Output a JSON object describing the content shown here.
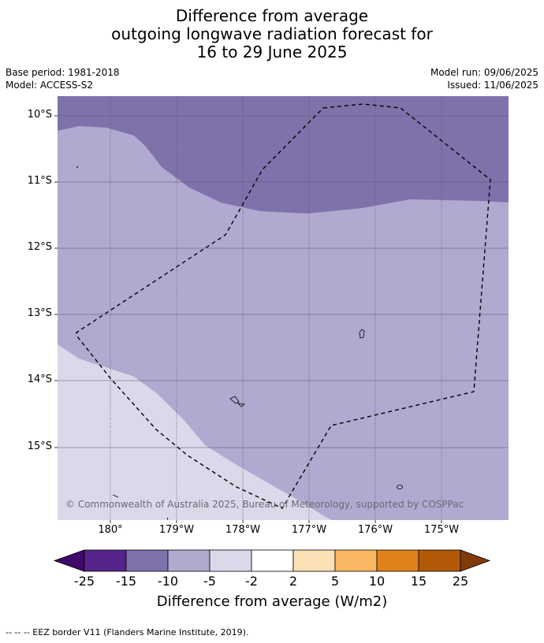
{
  "title": {
    "line1": "Difference from average",
    "line2": "outgoing longwave radiation forecast for",
    "line3": "16 to 29 June 2025"
  },
  "meta": {
    "base_period": "Base period: 1981-2018",
    "model": "Model: ACCESS-S2",
    "model_run": "Model run: 09/06/2025",
    "issued": "Issued: 11/06/2025"
  },
  "map": {
    "lat_labels": [
      "10°S",
      "11°S",
      "12°S",
      "13°S",
      "14°S",
      "15°S"
    ],
    "lon_labels": [
      "180°",
      "179°W",
      "178°W",
      "177°W",
      "176°W",
      "175°W"
    ],
    "copyright": "© Commonwealth of Australia 2025, Bureau of Meteorology, supported by COSPPac",
    "legend_colors": {
      "band_lt_minus15": "#7f72ab",
      "band_minus10_to_minus5": "#b0aad0",
      "band_minus5_to_minus2": "#d9d9ea"
    }
  },
  "colorbar": {
    "ticks": [
      "-25",
      "-15",
      "-10",
      "-5",
      "-2",
      "2",
      "5",
      "10",
      "15",
      "25"
    ],
    "colors": [
      "#3f0a6a",
      "#55248a",
      "#7f72ab",
      "#b0aad0",
      "#d9d9ea",
      "#ffffff",
      "#fee0b6",
      "#fbb761",
      "#e1811a",
      "#b35807",
      "#7f3b08"
    ],
    "label": "Difference from average (W/m2)"
  },
  "footnote": "--  --  -- EEZ border V11 (Flanders Marine Institute, 2019)."
}
